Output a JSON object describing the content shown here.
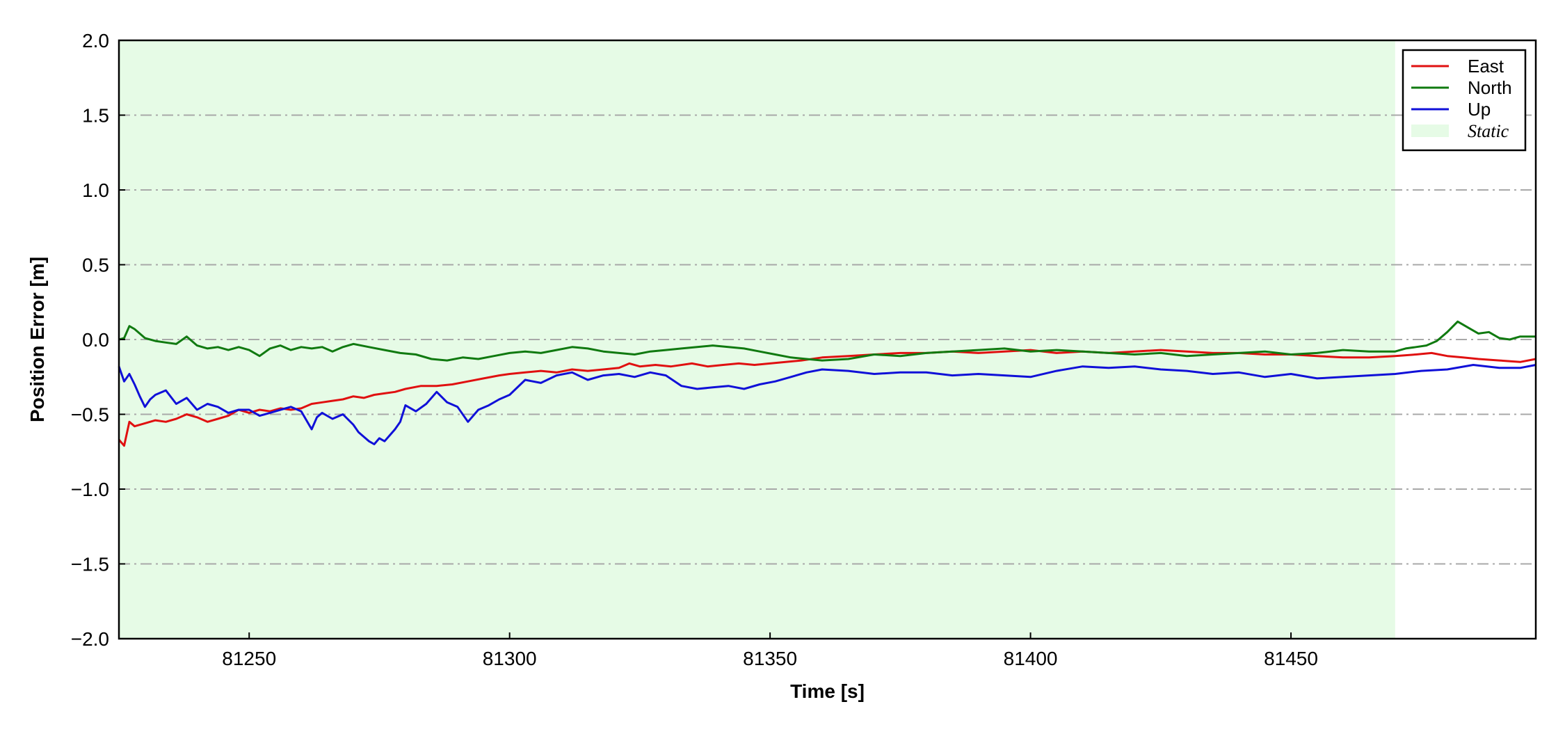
{
  "chart_data": {
    "type": "line",
    "title": "",
    "xlabel": "Time [s]",
    "ylabel": "Position Error [m]",
    "xlim": [
      81225,
      81497
    ],
    "ylim": [
      -2.0,
      2.0
    ],
    "xticks": [
      81250,
      81300,
      81350,
      81400,
      81450
    ],
    "xtick_labels": [
      "81250",
      "81300",
      "81350",
      "81400",
      "81450"
    ],
    "yticks": [
      2.0,
      1.5,
      1.0,
      0.5,
      0.0,
      -0.5,
      -1.0,
      -1.5,
      -2.0
    ],
    "ytick_labels": [
      "2.0",
      "1.5",
      "1.0",
      "0.5",
      "0.0",
      "−0.5",
      "−1.0",
      "−1.5",
      "−2.0"
    ],
    "grid": "y, dash-dot",
    "legend_position": "top-right",
    "shaded_region": {
      "label": "Static",
      "x_start": 81225,
      "x_end": 81470,
      "color": "#e6fbe6"
    },
    "series": [
      {
        "name": "East",
        "color": "#e01010",
        "x": [
          81225,
          81226,
          81227,
          81228,
          81230,
          81232,
          81234,
          81236,
          81238,
          81240,
          81242,
          81244,
          81246,
          81248,
          81250,
          81252,
          81254,
          81256,
          81258,
          81260,
          81262,
          81264,
          81266,
          81268,
          81270,
          81272,
          81274,
          81276,
          81278,
          81280,
          81283,
          81286,
          81289,
          81292,
          81295,
          81298,
          81300,
          81303,
          81306,
          81309,
          81312,
          81315,
          81318,
          81321,
          81323,
          81325,
          81328,
          81331,
          81335,
          81338,
          81341,
          81344,
          81347,
          81350,
          81353,
          81356,
          81360,
          81365,
          81370,
          81375,
          81380,
          81385,
          81390,
          81395,
          81400,
          81405,
          81410,
          81415,
          81420,
          81425,
          81430,
          81435,
          81440,
          81445,
          81450,
          81455,
          81460,
          81465,
          81470,
          81474,
          81477,
          81480,
          81483,
          81486,
          81490,
          81494,
          81497
        ],
        "values": [
          -0.67,
          -0.71,
          -0.55,
          -0.58,
          -0.56,
          -0.54,
          -0.55,
          -0.53,
          -0.5,
          -0.52,
          -0.55,
          -0.53,
          -0.51,
          -0.47,
          -0.49,
          -0.47,
          -0.48,
          -0.46,
          -0.47,
          -0.46,
          -0.43,
          -0.42,
          -0.41,
          -0.4,
          -0.38,
          -0.39,
          -0.37,
          -0.36,
          -0.35,
          -0.33,
          -0.31,
          -0.31,
          -0.3,
          -0.28,
          -0.26,
          -0.24,
          -0.23,
          -0.22,
          -0.21,
          -0.22,
          -0.2,
          -0.21,
          -0.2,
          -0.19,
          -0.16,
          -0.18,
          -0.17,
          -0.18,
          -0.16,
          -0.18,
          -0.17,
          -0.16,
          -0.17,
          -0.16,
          -0.15,
          -0.14,
          -0.12,
          -0.11,
          -0.1,
          -0.09,
          -0.09,
          -0.08,
          -0.09,
          -0.08,
          -0.07,
          -0.09,
          -0.08,
          -0.09,
          -0.08,
          -0.07,
          -0.08,
          -0.09,
          -0.09,
          -0.1,
          -0.1,
          -0.11,
          -0.12,
          -0.12,
          -0.11,
          -0.1,
          -0.09,
          -0.11,
          -0.12,
          -0.13,
          -0.14,
          -0.15,
          -0.13
        ]
      },
      {
        "name": "North",
        "color": "#107a10",
        "x": [
          81225,
          81226,
          81227,
          81228,
          81230,
          81232,
          81234,
          81236,
          81238,
          81240,
          81242,
          81244,
          81246,
          81248,
          81250,
          81252,
          81254,
          81256,
          81258,
          81260,
          81262,
          81264,
          81266,
          81268,
          81270,
          81273,
          81276,
          81279,
          81282,
          81285,
          81288,
          81291,
          81294,
          81297,
          81300,
          81303,
          81306,
          81309,
          81312,
          81315,
          81318,
          81321,
          81324,
          81327,
          81330,
          81333,
          81336,
          81339,
          81342,
          81345,
          81348,
          81351,
          81354,
          81357,
          81360,
          81365,
          81370,
          81375,
          81380,
          81385,
          81390,
          81395,
          81400,
          81405,
          81410,
          81415,
          81420,
          81425,
          81430,
          81435,
          81440,
          81445,
          81450,
          81455,
          81460,
          81465,
          81470,
          81472,
          81474,
          81476,
          81478,
          81480,
          81482,
          81484,
          81486,
          81488,
          81490,
          81492,
          81494,
          81497
        ],
        "values": [
          0.0,
          0.01,
          0.09,
          0.07,
          0.01,
          -0.01,
          -0.02,
          -0.03,
          0.02,
          -0.04,
          -0.06,
          -0.05,
          -0.07,
          -0.05,
          -0.07,
          -0.11,
          -0.06,
          -0.04,
          -0.07,
          -0.05,
          -0.06,
          -0.05,
          -0.08,
          -0.05,
          -0.03,
          -0.05,
          -0.07,
          -0.09,
          -0.1,
          -0.13,
          -0.14,
          -0.12,
          -0.13,
          -0.11,
          -0.09,
          -0.08,
          -0.09,
          -0.07,
          -0.05,
          -0.06,
          -0.08,
          -0.09,
          -0.1,
          -0.08,
          -0.07,
          -0.06,
          -0.05,
          -0.04,
          -0.05,
          -0.06,
          -0.08,
          -0.1,
          -0.12,
          -0.13,
          -0.14,
          -0.13,
          -0.1,
          -0.11,
          -0.09,
          -0.08,
          -0.07,
          -0.06,
          -0.08,
          -0.07,
          -0.08,
          -0.09,
          -0.1,
          -0.09,
          -0.11,
          -0.1,
          -0.09,
          -0.08,
          -0.1,
          -0.09,
          -0.07,
          -0.08,
          -0.08,
          -0.06,
          -0.05,
          -0.04,
          -0.01,
          0.05,
          0.12,
          0.08,
          0.04,
          0.05,
          0.01,
          0.0,
          0.02,
          0.02
        ]
      },
      {
        "name": "Up",
        "color": "#1010d8",
        "x": [
          81225,
          81226,
          81227,
          81228,
          81229,
          81230,
          81231,
          81232,
          81234,
          81236,
          81238,
          81240,
          81242,
          81244,
          81246,
          81248,
          81250,
          81252,
          81254,
          81256,
          81258,
          81260,
          81262,
          81263,
          81264,
          81266,
          81268,
          81270,
          81271,
          81272,
          81273,
          81274,
          81275,
          81276,
          81277,
          81278,
          81279,
          81280,
          81282,
          81284,
          81286,
          81288,
          81290,
          81292,
          81294,
          81296,
          81298,
          81300,
          81303,
          81306,
          81309,
          81312,
          81315,
          81318,
          81321,
          81324,
          81327,
          81330,
          81333,
          81336,
          81339,
          81342,
          81345,
          81348,
          81351,
          81354,
          81357,
          81360,
          81365,
          81370,
          81375,
          81380,
          81385,
          81390,
          81395,
          81400,
          81405,
          81410,
          81415,
          81420,
          81425,
          81430,
          81435,
          81440,
          81445,
          81450,
          81455,
          81460,
          81465,
          81470,
          81475,
          81480,
          81485,
          81490,
          81494,
          81497
        ],
        "values": [
          -0.18,
          -0.28,
          -0.23,
          -0.3,
          -0.38,
          -0.45,
          -0.4,
          -0.37,
          -0.34,
          -0.43,
          -0.39,
          -0.47,
          -0.43,
          -0.45,
          -0.49,
          -0.47,
          -0.47,
          -0.51,
          -0.49,
          -0.47,
          -0.45,
          -0.48,
          -0.6,
          -0.52,
          -0.49,
          -0.53,
          -0.5,
          -0.57,
          -0.62,
          -0.65,
          -0.68,
          -0.7,
          -0.66,
          -0.68,
          -0.64,
          -0.6,
          -0.55,
          -0.44,
          -0.48,
          -0.43,
          -0.35,
          -0.42,
          -0.45,
          -0.55,
          -0.47,
          -0.44,
          -0.4,
          -0.37,
          -0.27,
          -0.29,
          -0.24,
          -0.22,
          -0.27,
          -0.24,
          -0.23,
          -0.25,
          -0.22,
          -0.24,
          -0.31,
          -0.33,
          -0.32,
          -0.31,
          -0.33,
          -0.3,
          -0.28,
          -0.25,
          -0.22,
          -0.2,
          -0.21,
          -0.23,
          -0.22,
          -0.22,
          -0.24,
          -0.23,
          -0.24,
          -0.25,
          -0.21,
          -0.18,
          -0.19,
          -0.18,
          -0.2,
          -0.21,
          -0.23,
          -0.22,
          -0.25,
          -0.23,
          -0.26,
          -0.25,
          -0.24,
          -0.23,
          -0.21,
          -0.2,
          -0.17,
          -0.19,
          -0.19,
          -0.17
        ]
      }
    ],
    "legend": [
      "East",
      "North",
      "Up",
      "Static"
    ]
  }
}
